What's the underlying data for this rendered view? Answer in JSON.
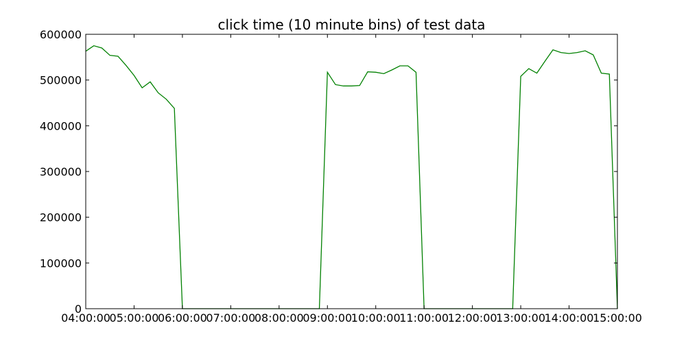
{
  "chart_data": {
    "type": "line",
    "title": "click time (10 minute bins) of test data",
    "xlabel": "",
    "ylabel": "",
    "xlim": [
      "04:00:00",
      "15:00:00"
    ],
    "ylim": [
      0,
      600000
    ],
    "grid": false,
    "legend": "none",
    "x_ticks": [
      "04:00:00",
      "05:00:00",
      "06:00:00",
      "07:00:00",
      "08:00:00",
      "09:00:00",
      "10:00:00",
      "11:00:00",
      "12:00:00",
      "13:00:00",
      "14:00:00",
      "15:00:00"
    ],
    "y_ticks": [
      0,
      100000,
      200000,
      300000,
      400000,
      500000,
      600000
    ],
    "series": [
      {
        "color": "#008000",
        "x": [
          "04:00:00",
          "04:10:00",
          "04:20:00",
          "04:30:00",
          "04:40:00",
          "04:50:00",
          "05:00:00",
          "05:10:00",
          "05:20:00",
          "05:30:00",
          "05:40:00",
          "05:50:00",
          "06:00:00",
          "06:10:00",
          "06:20:00",
          "06:30:00",
          "06:40:00",
          "06:50:00",
          "07:00:00",
          "07:10:00",
          "07:20:00",
          "07:30:00",
          "07:40:00",
          "07:50:00",
          "08:00:00",
          "08:10:00",
          "08:20:00",
          "08:30:00",
          "08:40:00",
          "08:50:00",
          "09:00:00",
          "09:10:00",
          "09:20:00",
          "09:30:00",
          "09:40:00",
          "09:50:00",
          "10:00:00",
          "10:10:00",
          "10:20:00",
          "10:30:00",
          "10:40:00",
          "10:50:00",
          "11:00:00",
          "11:10:00",
          "11:20:00",
          "11:30:00",
          "11:40:00",
          "11:50:00",
          "12:00:00",
          "12:10:00",
          "12:20:00",
          "12:30:00",
          "12:40:00",
          "12:50:00",
          "13:00:00",
          "13:10:00",
          "13:20:00",
          "13:30:00",
          "13:40:00",
          "13:50:00",
          "14:00:00",
          "14:10:00",
          "14:20:00",
          "14:30:00",
          "14:40:00",
          "14:50:00",
          "15:00:00"
        ],
        "values": [
          563000,
          575000,
          570000,
          554000,
          552000,
          532000,
          510000,
          483000,
          496000,
          472000,
          458000,
          438000,
          0,
          0,
          0,
          0,
          0,
          0,
          0,
          0,
          0,
          0,
          0,
          0,
          0,
          0,
          0,
          0,
          0,
          0,
          517000,
          490000,
          487000,
          487000,
          488000,
          518000,
          517000,
          514000,
          522000,
          531000,
          531000,
          517000,
          0,
          0,
          0,
          0,
          0,
          0,
          0,
          0,
          0,
          0,
          0,
          0,
          508000,
          525000,
          515000,
          541000,
          566000,
          560000,
          558000,
          560000,
          564000,
          555000,
          515000,
          513000,
          0
        ]
      }
    ]
  }
}
